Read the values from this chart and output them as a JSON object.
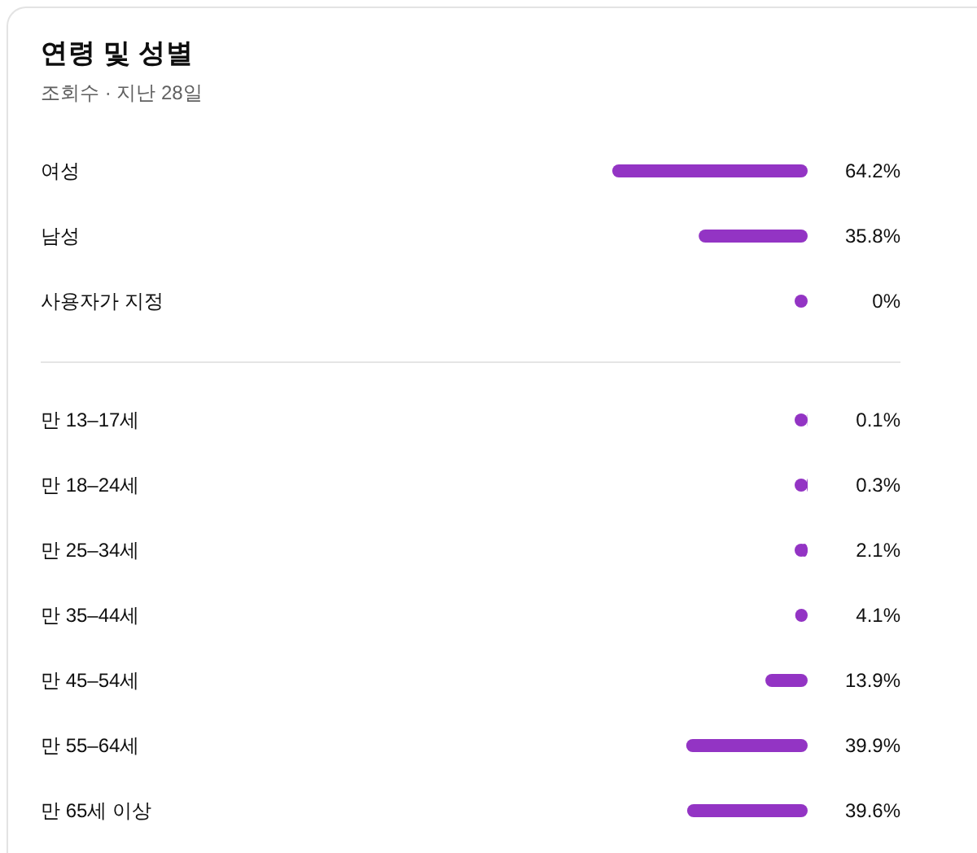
{
  "chart_data": [
    {
      "type": "bar",
      "orientation": "horizontal",
      "title": "연령 및 성별",
      "subtitle": "조회수 · 지난 28일",
      "categories": [
        "여성",
        "남성",
        "사용자가 지정"
      ],
      "values": [
        64.2,
        35.8,
        0
      ],
      "value_labels": [
        "64.2%",
        "35.8%",
        "0%"
      ],
      "color": "#9334c4"
    },
    {
      "type": "bar",
      "orientation": "horizontal",
      "categories": [
        "만 13–17세",
        "만 18–24세",
        "만 25–34세",
        "만 35–44세",
        "만 45–54세",
        "만 55–64세",
        "만 65세 이상"
      ],
      "values": [
        0.1,
        0.3,
        2.1,
        4.1,
        13.9,
        39.9,
        39.6
      ],
      "value_labels": [
        "0.1%",
        "0.3%",
        "2.1%",
        "4.1%",
        "13.9%",
        "39.9%",
        "39.6%"
      ],
      "color": "#9334c4"
    }
  ]
}
